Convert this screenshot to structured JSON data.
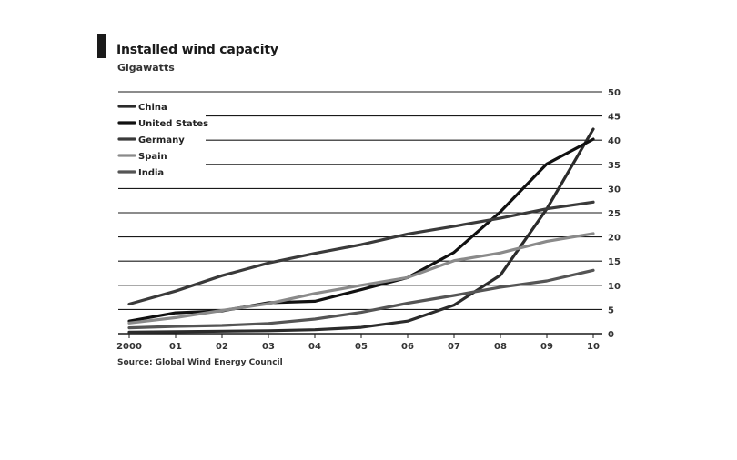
{
  "chart_data": {
    "type": "line",
    "title": "Installed wind capacity",
    "subtitle": "Gigawatts",
    "source": "Source: Global Wind Energy Council",
    "x_categories": [
      "2000",
      "01",
      "02",
      "03",
      "04",
      "05",
      "06",
      "07",
      "08",
      "09",
      "10"
    ],
    "y_ticks": [
      0,
      5,
      10,
      15,
      20,
      25,
      30,
      35,
      40,
      45,
      50
    ],
    "ylim": [
      0,
      50
    ],
    "grid": true,
    "legend_position": "top-left",
    "series": [
      {
        "name": "China",
        "color": "#2b2b2b",
        "values": [
          0.3,
          0.4,
          0.5,
          0.6,
          0.8,
          1.3,
          2.6,
          5.9,
          12.1,
          25.8,
          42.3
        ]
      },
      {
        "name": "United States",
        "color": "#111111",
        "values": [
          2.6,
          4.3,
          4.7,
          6.4,
          6.7,
          9.1,
          11.6,
          16.8,
          25.2,
          35.1,
          40.2
        ]
      },
      {
        "name": "Germany",
        "color": "#3a3a3a",
        "values": [
          6.1,
          8.8,
          12.0,
          14.6,
          16.6,
          18.4,
          20.6,
          22.2,
          23.9,
          25.8,
          27.2
        ]
      },
      {
        "name": "Spain",
        "color": "#8a8a8a",
        "values": [
          2.2,
          3.3,
          4.8,
          6.2,
          8.3,
          10.0,
          11.6,
          15.1,
          16.7,
          19.1,
          20.7
        ]
      },
      {
        "name": "India",
        "color": "#555555",
        "values": [
          1.2,
          1.5,
          1.7,
          2.1,
          3.0,
          4.4,
          6.3,
          7.9,
          9.6,
          10.9,
          13.1
        ]
      }
    ]
  }
}
